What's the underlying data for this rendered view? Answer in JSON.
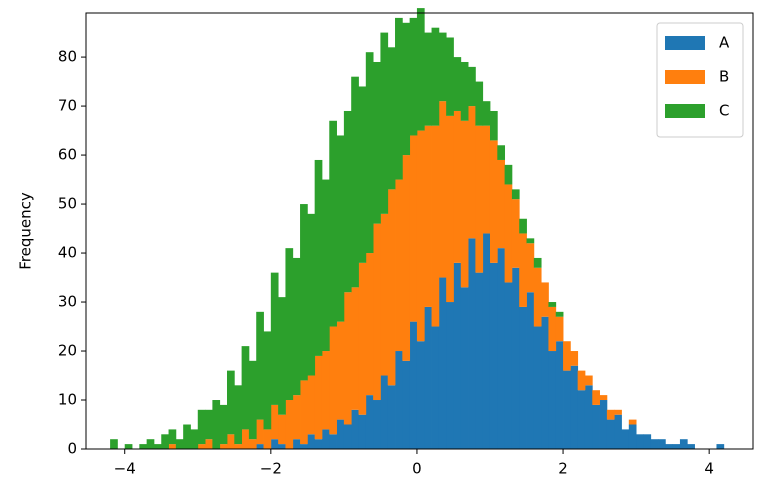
{
  "chart_data": {
    "type": "histogram",
    "stacked": true,
    "y_label": "Frequency",
    "bins": [
      -4.2,
      -4.1,
      -4.0,
      -3.9,
      -3.8,
      -3.7,
      -3.6,
      -3.5,
      -3.4,
      -3.3,
      -3.2,
      -3.1,
      -3.0,
      -2.9,
      -2.8,
      -2.7,
      -2.6,
      -2.5,
      -2.4,
      -2.3,
      -2.2,
      -2.1,
      -2.0,
      -1.9,
      -1.8,
      -1.7,
      -1.6,
      -1.5,
      -1.4,
      -1.3,
      -1.2,
      -1.1,
      -1.0,
      -0.9,
      -0.8,
      -0.7,
      -0.6,
      -0.5,
      -0.4,
      -0.3,
      -0.2,
      -0.1,
      0.0,
      0.1,
      0.2,
      0.3,
      0.4,
      0.5,
      0.6,
      0.7,
      0.8,
      0.9,
      1.0,
      1.1,
      1.2,
      1.3,
      1.4,
      1.5,
      1.6,
      1.7,
      1.8,
      1.9,
      2.0,
      2.1,
      2.2,
      2.3,
      2.4,
      2.5,
      2.6,
      2.7,
      2.8,
      2.9,
      3.0,
      3.1,
      3.2,
      3.3,
      3.4,
      3.5,
      3.6,
      3.7,
      3.8,
      3.9,
      4.0,
      4.1,
      4.2
    ],
    "series": [
      {
        "name": "A",
        "color": "#1f77b4",
        "values": [
          0,
          0,
          0,
          0,
          0,
          0,
          0,
          0,
          0,
          0,
          0,
          0,
          0,
          0,
          0,
          0,
          0,
          0,
          0,
          0,
          1,
          0,
          2,
          1,
          0,
          2,
          1,
          3,
          2,
          4,
          3,
          6,
          5,
          8,
          7,
          11,
          10,
          15,
          13,
          20,
          18,
          26,
          22,
          29,
          25,
          35,
          30,
          38,
          33,
          43,
          36,
          44,
          38,
          41,
          34,
          37,
          29,
          32,
          25,
          27,
          20,
          22,
          16,
          17,
          12,
          13,
          9,
          10,
          6,
          7,
          4,
          5,
          3,
          3,
          2,
          2,
          1,
          1,
          2,
          1,
          0,
          0,
          0,
          1
        ]
      },
      {
        "name": "B",
        "color": "#ff7f0e",
        "values": [
          0,
          0,
          0,
          0,
          0,
          0,
          0,
          0,
          1,
          0,
          0,
          0,
          1,
          2,
          0,
          1,
          3,
          1,
          4,
          2,
          5,
          4,
          7,
          6,
          10,
          9,
          13,
          12,
          17,
          16,
          22,
          20,
          27,
          25,
          31,
          29,
          36,
          33,
          40,
          35,
          42,
          38,
          43,
          37,
          41,
          36,
          38,
          31,
          34,
          27,
          30,
          22,
          25,
          18,
          20,
          14,
          15,
          10,
          12,
          7,
          9,
          5,
          6,
          3,
          4,
          2,
          3,
          1,
          2,
          1,
          0,
          1,
          0,
          0,
          0,
          0,
          0,
          0,
          0,
          0,
          0,
          0,
          0,
          0
        ]
      },
      {
        "name": "C",
        "color": "#2ca02c",
        "values": [
          2,
          0,
          1,
          0,
          1,
          2,
          1,
          3,
          3,
          2,
          5,
          4,
          7,
          6,
          10,
          8,
          13,
          12,
          17,
          16,
          22,
          20,
          27,
          24,
          31,
          28,
          36,
          33,
          40,
          35,
          42,
          38,
          37,
          43,
          36,
          41,
          33,
          37,
          29,
          33,
          27,
          24,
          25,
          19,
          20,
          14,
          16,
          11,
          12,
          8,
          9,
          5,
          6,
          3,
          4,
          2,
          3,
          1,
          2,
          0,
          1,
          1,
          0,
          0,
          0,
          0,
          0,
          0,
          0,
          0,
          0,
          0,
          0,
          0,
          0,
          0,
          0,
          0,
          0,
          0,
          0,
          0,
          0,
          0
        ]
      }
    ],
    "xlim": [
      -4.53,
      4.6
    ],
    "xticks": [
      {
        "value": -4,
        "label": "−4"
      },
      {
        "value": -2,
        "label": "−2"
      },
      0,
      2,
      4
    ],
    "ylim": [
      0,
      89
    ],
    "yticks": [
      0,
      10,
      20,
      30,
      40,
      50,
      60,
      70,
      80
    ],
    "legend": "upper right"
  }
}
